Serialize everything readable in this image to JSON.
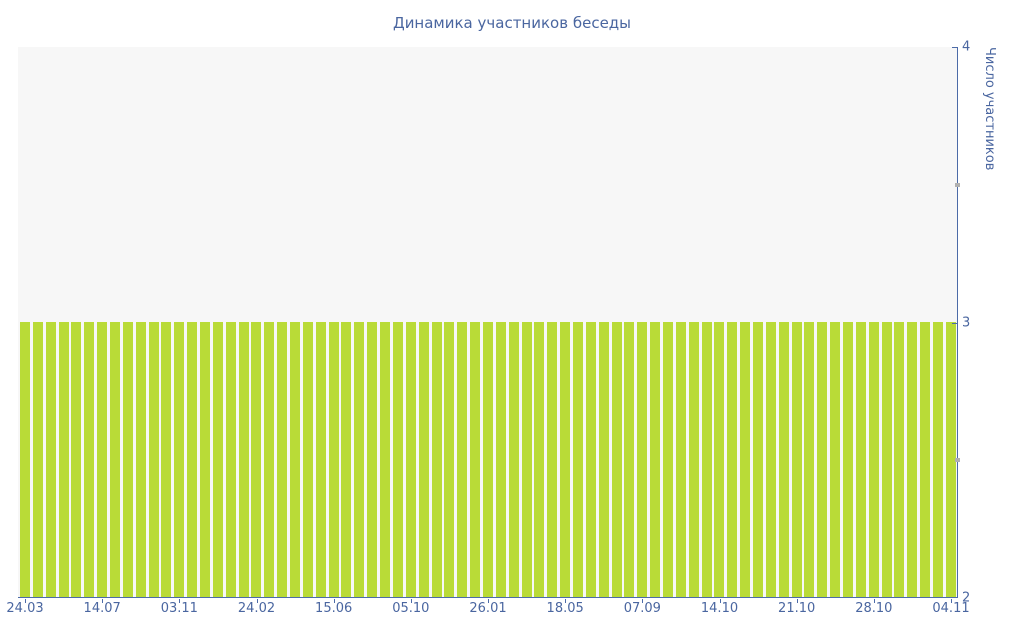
{
  "chart_data": {
    "type": "bar",
    "title": "Динамика участников беседы",
    "xlabel": "",
    "ylabel": "Число участников",
    "ylim": [
      2,
      4
    ],
    "yticks": [
      4,
      3,
      2
    ],
    "ytick_labels": [
      "4",
      "3",
      "2"
    ],
    "yticks_minor": [
      3.5,
      2.5
    ],
    "categories": [
      "24.03",
      "14.07",
      "03.11",
      "24.02",
      "15.06",
      "05.10",
      "26.01",
      "18.05",
      "07.09",
      "14.10",
      "21.10",
      "28.10",
      "04.11"
    ],
    "category_bar_step": 6,
    "values": [
      3,
      3,
      3,
      3,
      3,
      3,
      3,
      3,
      3,
      3,
      3,
      3,
      3,
      3,
      3,
      3,
      3,
      3,
      3,
      3,
      3,
      3,
      3,
      3,
      3,
      3,
      3,
      3,
      3,
      3,
      3,
      3,
      3,
      3,
      3,
      3,
      3,
      3,
      3,
      3,
      3,
      3,
      3,
      3,
      3,
      3,
      3,
      3,
      3,
      3,
      3,
      3,
      3,
      3,
      3,
      3,
      3,
      3,
      3,
      3,
      3,
      3,
      3,
      3,
      3,
      3,
      3,
      3,
      3,
      3,
      3,
      3,
      3
    ],
    "grid": false,
    "legend": "none",
    "colors": {
      "bar": "#b9db37",
      "plot_background": "#f7f7f7",
      "axis": "#4c6ba8",
      "text": "#4a66a0",
      "minor_tick": "#b0b0b0"
    }
  }
}
